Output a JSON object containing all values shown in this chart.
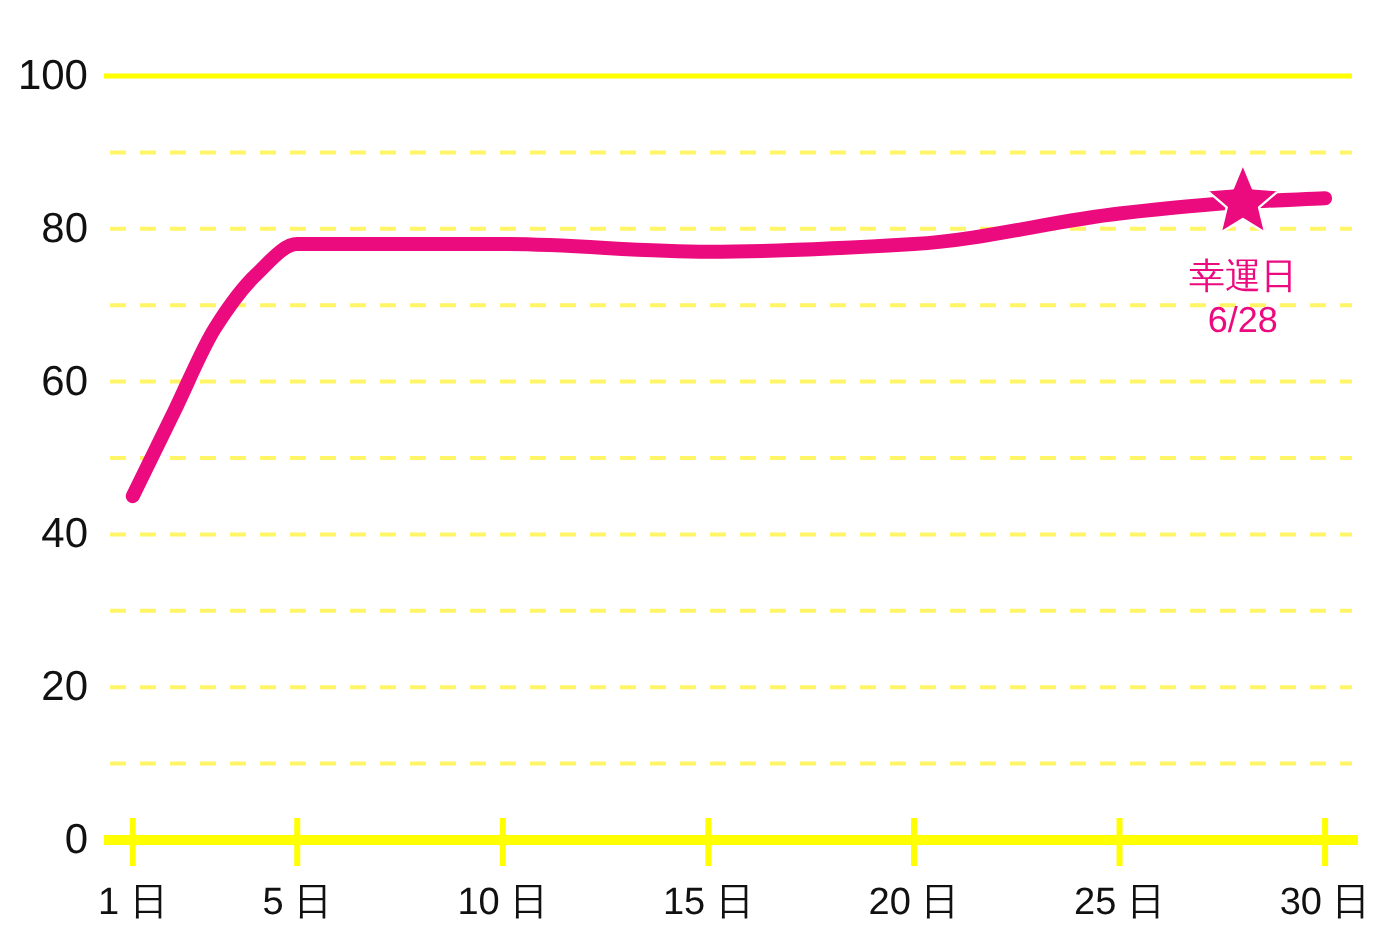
{
  "chart_data": {
    "type": "line",
    "x": [
      1,
      2,
      3,
      4,
      5,
      10,
      15,
      20,
      25,
      28,
      30
    ],
    "series": [
      {
        "type": "line",
        "color": "#ec0a7f",
        "values": [
          45,
          56,
          67,
          74,
          78,
          78,
          77,
          78,
          82,
          83.5,
          84
        ]
      },
      {
        "type": "scatter",
        "marker": "star",
        "color": "#ec0a7f",
        "x": [
          28
        ],
        "values": [
          83.5
        ]
      }
    ],
    "xlim": [
      0.3,
      30.8
    ],
    "xticks": [
      {
        "value": 1,
        "label": "1 日"
      },
      {
        "value": 5,
        "label": "5 日"
      },
      {
        "value": 10,
        "label": "10 日"
      },
      {
        "value": 15,
        "label": "15 日"
      },
      {
        "value": 20,
        "label": "20 日"
      },
      {
        "value": 25,
        "label": "25 日"
      },
      {
        "value": 30,
        "label": "30 日"
      }
    ],
    "ylim": [
      0,
      100
    ],
    "yticks": [
      0,
      {
        "value": 10,
        "label": null
      },
      20,
      {
        "value": 30,
        "label": null
      },
      40,
      {
        "value": 50,
        "label": null
      },
      60,
      {
        "value": 70,
        "label": null
      },
      80,
      {
        "value": 90,
        "label": null
      },
      100
    ],
    "grid": "y",
    "annotations": [
      {
        "text": "幸運日 6/28",
        "x": 28,
        "y": 83.5
      }
    ]
  }
}
